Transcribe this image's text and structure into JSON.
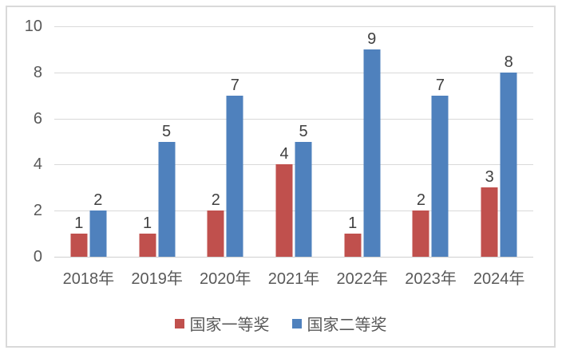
{
  "chart_data": {
    "type": "bar",
    "title": "",
    "xlabel": "",
    "ylabel": "",
    "categories": [
      "2018年",
      "2019年",
      "2020年",
      "2021年",
      "2022年",
      "2023年",
      "2024年"
    ],
    "series": [
      {
        "name": "国家一等奖",
        "color": "#C0504D",
        "values": [
          1,
          1,
          2,
          4,
          1,
          2,
          3
        ]
      },
      {
        "name": "国家二等奖",
        "color": "#4F81BD",
        "values": [
          2,
          5,
          7,
          5,
          9,
          7,
          8
        ]
      }
    ],
    "ylim": [
      0,
      10
    ],
    "yticks": [
      0,
      2,
      4,
      6,
      8,
      10
    ],
    "grid": true,
    "data_labels": true,
    "legend_position": "bottom"
  },
  "colors": {
    "series_red": "#C0504D",
    "series_blue": "#4F81BD",
    "gridline": "#D9D9D9",
    "frame_border": "#D9D9D9",
    "axis_text": "#595959",
    "data_label_text": "#404040",
    "background": "#FFFFFF"
  }
}
